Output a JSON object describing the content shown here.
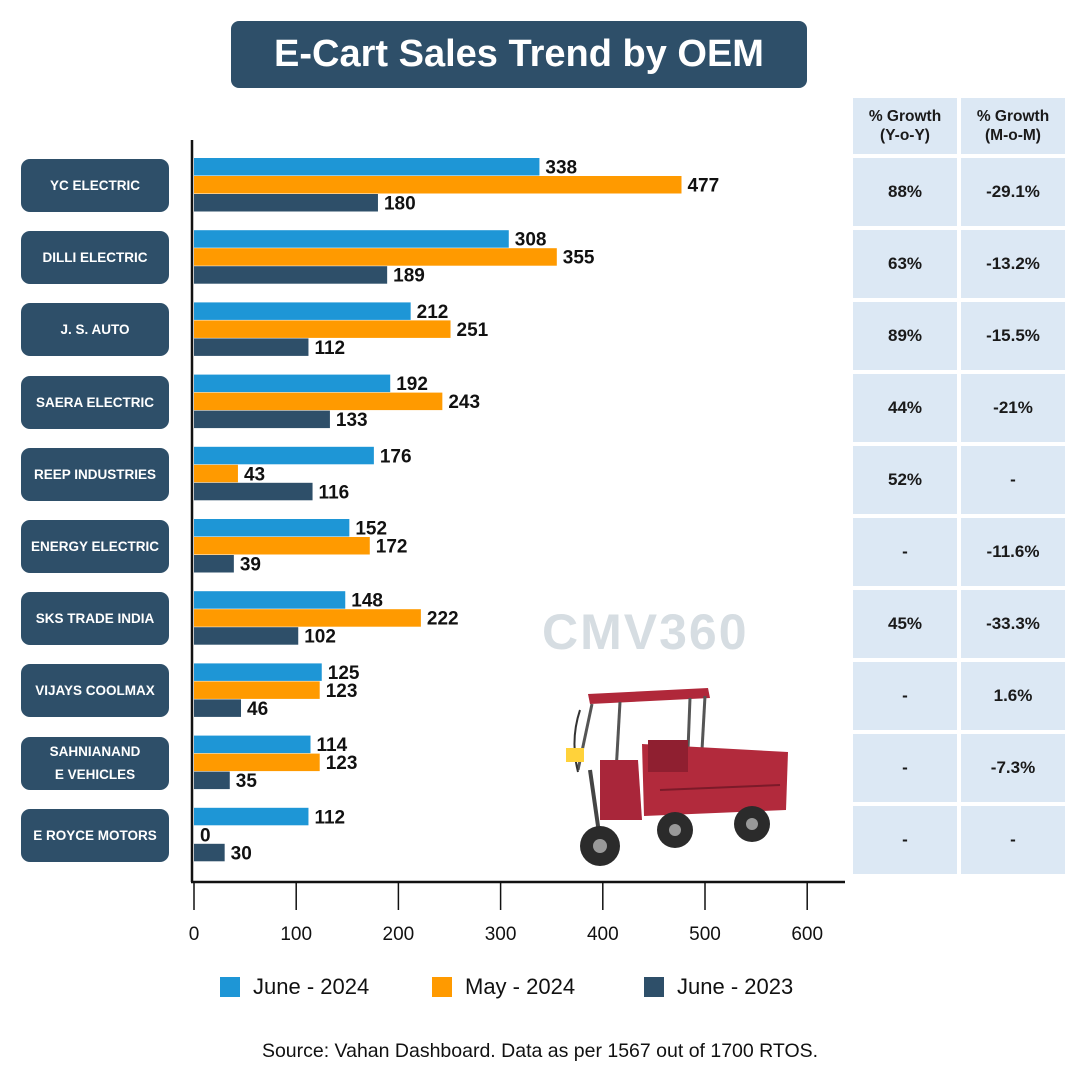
{
  "title": "E-Cart Sales Trend by OEM",
  "table": {
    "headers": [
      "% Growth\n(Y-o-Y)",
      "% Growth\n(M-o-M)"
    ],
    "rows": [
      {
        "yoy": "88%",
        "mom": "-29.1%"
      },
      {
        "yoy": "63%",
        "mom": "-13.2%"
      },
      {
        "yoy": "89%",
        "mom": "-15.5%"
      },
      {
        "yoy": "44%",
        "mom": "-21%"
      },
      {
        "yoy": "52%",
        "mom": "-"
      },
      {
        "yoy": "-",
        "mom": "-11.6%"
      },
      {
        "yoy": "45%",
        "mom": "-33.3%"
      },
      {
        "yoy": "-",
        "mom": "1.6%"
      },
      {
        "yoy": "-",
        "mom": "-7.3%"
      },
      {
        "yoy": "-",
        "mom": "-"
      }
    ]
  },
  "watermark": "CMV360",
  "source": "Source: Vahan Dashboard. Data as per 1567 out of 1700 RTOS.",
  "chart_data": {
    "type": "bar",
    "orientation": "horizontal",
    "title": "E-Cart Sales Trend by OEM",
    "categories": [
      "YC ELECTRIC",
      "DILLI ELECTRIC",
      "J. S. AUTO",
      "SAERA ELECTRIC",
      "REEP INDUSTRIES",
      "ENERGY ELECTRIC",
      "SKS TRADE INDIA",
      "VIJAYS COOLMAX",
      "SAHNIANAND\nE VEHICLES",
      "E ROYCE MOTORS"
    ],
    "series": [
      {
        "name": "June - 2024",
        "color": "#1e96d6",
        "values": [
          338,
          308,
          212,
          192,
          176,
          152,
          148,
          125,
          114,
          112
        ]
      },
      {
        "name": "May - 2024",
        "color": "#ff9a00",
        "values": [
          477,
          355,
          251,
          243,
          43,
          172,
          222,
          123,
          123,
          0
        ]
      },
      {
        "name": "June - 2023",
        "color": "#2e4f69",
        "values": [
          180,
          189,
          112,
          133,
          116,
          39,
          102,
          46,
          35,
          30
        ]
      }
    ],
    "xticks": [
      "0",
      "100",
      "200",
      "300",
      "400",
      "500",
      "600"
    ],
    "xlim": [
      0,
      640
    ],
    "legend": "bottom",
    "grid": false
  }
}
